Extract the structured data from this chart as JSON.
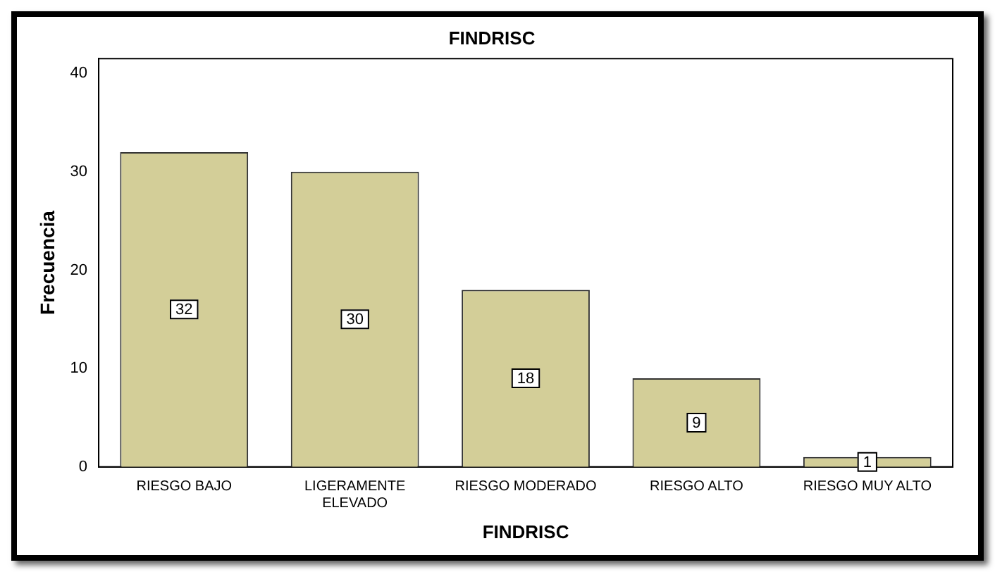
{
  "chart_data": {
    "type": "bar",
    "title": "FINDRISC",
    "xlabel": "FINDRISC",
    "ylabel": "Frecuencia",
    "categories": [
      "RIESGO BAJO",
      "LIGERAMENTE ELEVADO",
      "RIESGO MODERADO",
      "RIESGO ALTO",
      "RIESGO MUY ALTO"
    ],
    "values": [
      32,
      30,
      18,
      9,
      1
    ],
    "color": "#d3ce98",
    "ylim": [
      0,
      41.5
    ],
    "yticks": [
      0,
      10,
      20,
      30,
      40
    ],
    "grid": false,
    "data_labels": true
  }
}
